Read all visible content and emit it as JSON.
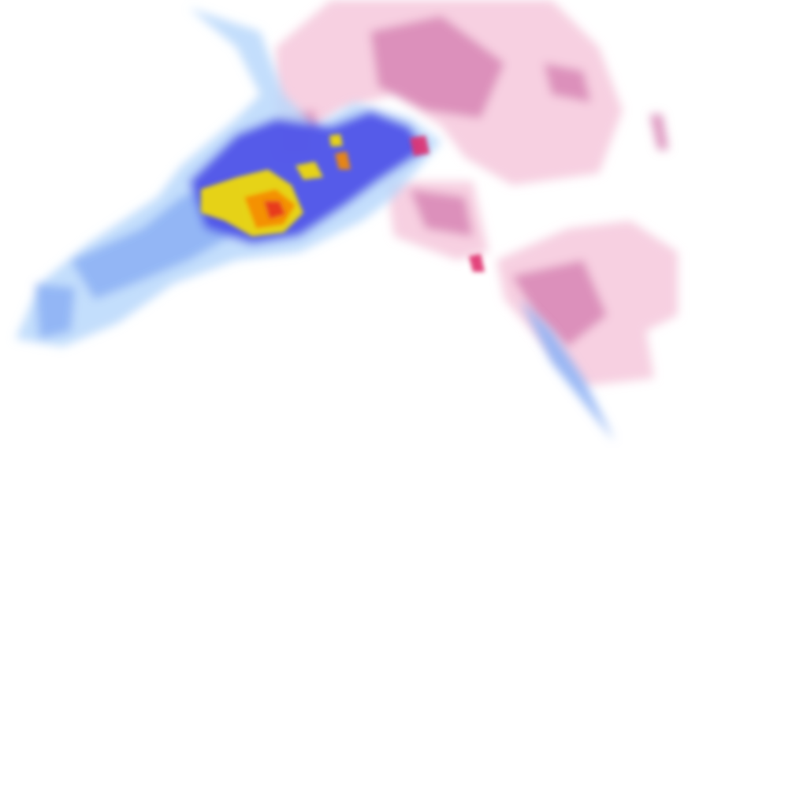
{
  "map": {
    "type": "precipitation-radar-tile",
    "colors": {
      "light_rain": "#b8d8fb",
      "moderate_rain": "#8fb3f5",
      "heavy_rain": "#4a4de8",
      "intense_rain": "#f6e000",
      "very_intense_rain": "#f58a00",
      "extreme_rain": "#e6321e",
      "light_snow_mix": "#f6c8dc",
      "moderate_snow_mix": "#d98ab8",
      "heavy_snow_mix": "#e0306e"
    }
  }
}
